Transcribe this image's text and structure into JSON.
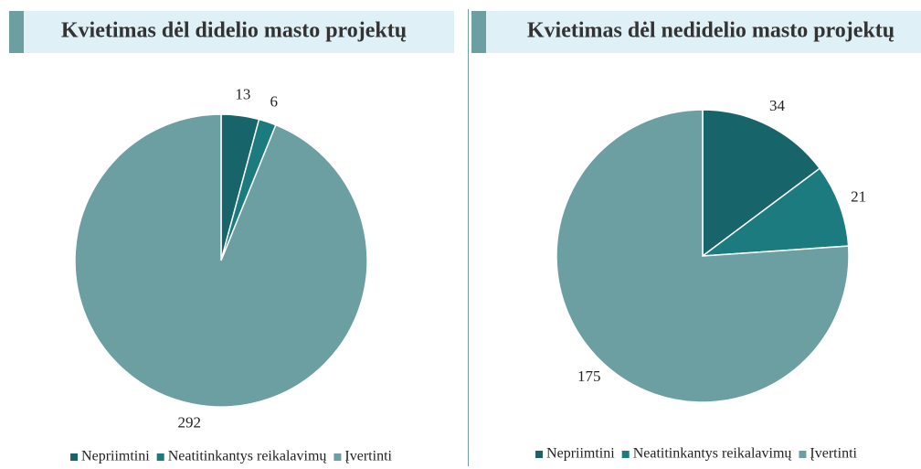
{
  "chart_data": [
    {
      "type": "pie",
      "title": "Kvietimas dėl didelio masto projektų",
      "categories": [
        "Nepriimtini",
        "Neatitinkantys reikalavimų",
        "Įvertinti"
      ],
      "values": [
        13,
        6,
        292
      ],
      "colors": [
        "#17656b",
        "#1b7b7e",
        "#6b9fa1"
      ]
    },
    {
      "type": "pie",
      "title": "Kvietimas dėl nedidelio masto projektų",
      "categories": [
        "Nepriimtini",
        "Neatitinkantys reikalavimų",
        "Įvertinti"
      ],
      "values": [
        34,
        21,
        175
      ],
      "colors": [
        "#17656b",
        "#1b7b7e",
        "#6b9fa1"
      ]
    }
  ]
}
